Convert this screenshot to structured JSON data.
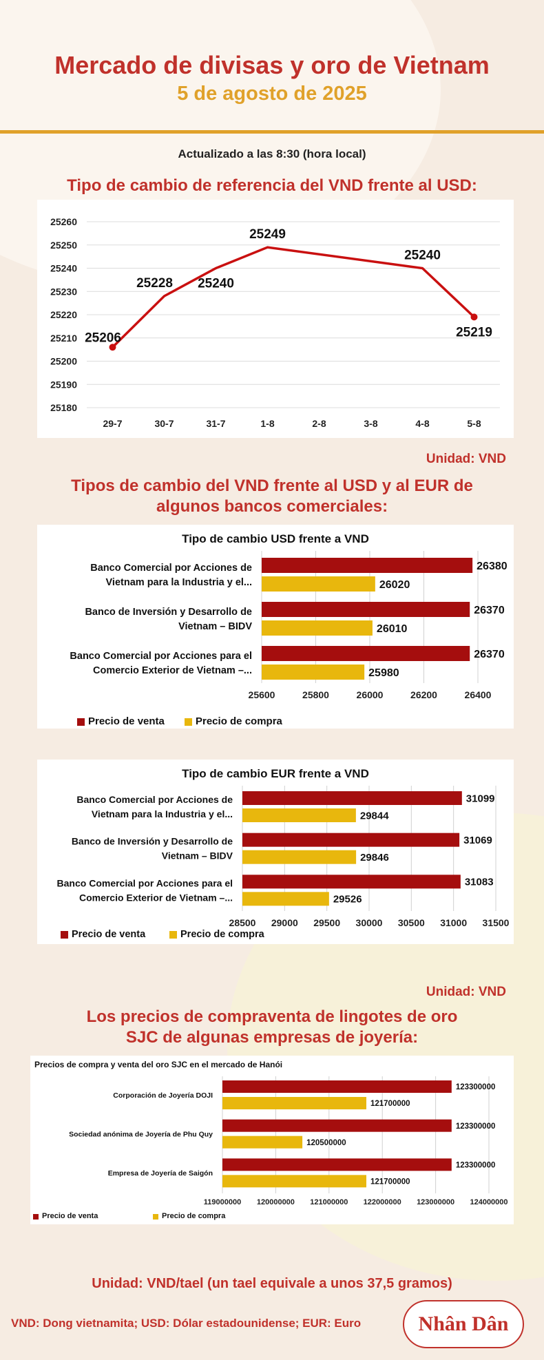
{
  "header": {
    "title": "Mercado de divisas y oro de Vietnam",
    "date": "5 de agosto de 2025",
    "updated": "Actualizado a las 8:30 (hora local)"
  },
  "sections": {
    "ref_title": "Tipo de cambio de referencia del VND frente al USD:",
    "ref_unit": "Unidad: VND",
    "banks_title_line1": "Tipos de cambio del VND frente al USD y al EUR de",
    "banks_title_line2": "algunos bancos comerciales:",
    "banks_unit": "Unidad: VND",
    "gold_title_line1": "Los precios de compraventa de lingotes de oro",
    "gold_title_line2": "SJC de algunas empresas de joyería:",
    "gold_unit": "Unidad: VND/tael (un tael equivale a unos 37,5 gramos)"
  },
  "footer": {
    "note": "VND: Dong vietnamita; USD: Dólar estadounidense; EUR: Euro",
    "logo": "Nhân Dân"
  },
  "colors": {
    "accent": "#c0312b",
    "gold": "#e0a12a",
    "sell": "#a50e0e",
    "buy": "#e8b70d"
  },
  "chart_data": [
    {
      "type": "line",
      "x": [
        "29-7",
        "30-7",
        "31-7",
        "1-8",
        "2-8",
        "3-8",
        "4-8",
        "5-8"
      ],
      "series": [
        {
          "values": [
            25206,
            25228,
            25240,
            25249,
            null,
            null,
            25240,
            25219
          ]
        }
      ],
      "labels": [
        "25206",
        "25228",
        "25240",
        "25249",
        "",
        "",
        "25240",
        "25219"
      ],
      "ylim": [
        25180,
        25260
      ],
      "yticks": [
        25180,
        25190,
        25200,
        25210,
        25220,
        25230,
        25240,
        25250,
        25260
      ],
      "grid": true
    },
    {
      "type": "bar",
      "title": "Tipo de cambio USD frente a VND",
      "categories": [
        [
          "Banco Comercial por Acciones de",
          "Vietnam para la Industria y el..."
        ],
        [
          "Banco de Inversión y Desarrollo de",
          "Vietnam – BIDV"
        ],
        [
          "Banco Comercial por Acciones para el",
          "Comercio Exterior de Vietnam –..."
        ]
      ],
      "series": [
        {
          "name": "Precio de venta",
          "values": [
            26380,
            26370,
            26370
          ]
        },
        {
          "name": "Precio de compra",
          "values": [
            26020,
            26010,
            25980
          ]
        }
      ],
      "xlim": [
        25600,
        26400
      ],
      "xticks": [
        25600,
        25800,
        26000,
        26200,
        26400
      ],
      "legend": "bottom-left",
      "grid": true
    },
    {
      "type": "bar",
      "title": "Tipo de cambio EUR frente a VND",
      "categories": [
        [
          "Banco Comercial por Acciones de",
          "Vietnam para la Industria y el..."
        ],
        [
          "Banco de Inversión y Desarrollo de",
          "Vietnam – BIDV"
        ],
        [
          "Banco Comercial por Acciones para el",
          "Comercio Exterior de Vietnam –..."
        ]
      ],
      "series": [
        {
          "name": "Precio de venta",
          "values": [
            31099,
            31069,
            31083
          ]
        },
        {
          "name": "Precio de compra",
          "values": [
            29844,
            29846,
            29526
          ]
        }
      ],
      "xlim": [
        28500,
        31500
      ],
      "xticks": [
        28500,
        29000,
        29500,
        30000,
        30500,
        31000,
        31500
      ],
      "legend": "bottom-left",
      "grid": true
    },
    {
      "type": "bar",
      "title": "Precios de compra y venta del oro SJC en el mercado de Hanói",
      "categories": [
        [
          "Corporación de Joyería DOJI"
        ],
        [
          "Sociedad anónima de Joyería de Phu Quy"
        ],
        [
          "Empresa de Joyería de Saigón"
        ]
      ],
      "series": [
        {
          "name": "Precio de venta",
          "values": [
            123300000,
            123300000,
            123300000
          ]
        },
        {
          "name": "Precio de compra",
          "values": [
            121700000,
            120500000,
            121700000
          ]
        }
      ],
      "xlim": [
        119000000,
        124000000
      ],
      "xticks": [
        119000000,
        120000000,
        121000000,
        122000000,
        123000000,
        124000000
      ],
      "legend": "bottom-left",
      "grid": true
    }
  ]
}
